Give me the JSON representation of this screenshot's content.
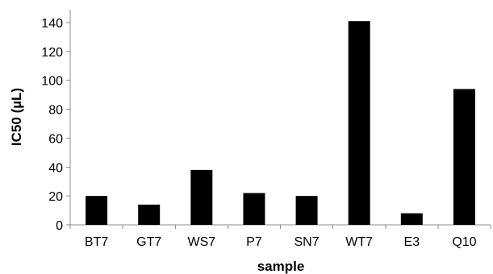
{
  "chart_data": {
    "type": "bar",
    "categories": [
      "BT7",
      "GT7",
      "WS7",
      "P7",
      "SN7",
      "WT7",
      "E3",
      "Q10"
    ],
    "values": [
      20,
      14,
      38,
      22,
      20,
      141,
      8,
      94
    ],
    "xlabel": "sample",
    "ylabel": "IC50 (µL)",
    "ylim": [
      0,
      140
    ],
    "yticks": [
      "0",
      "20",
      "40",
      "60",
      "80",
      "100",
      "120",
      "140"
    ],
    "grid": false,
    "bar_color": "#000000"
  }
}
